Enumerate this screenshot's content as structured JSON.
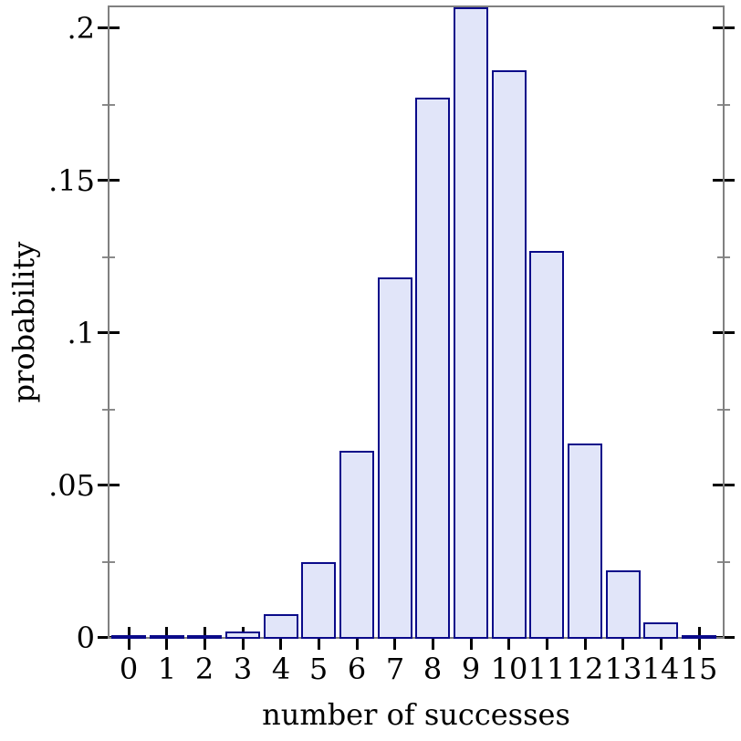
{
  "chart_data": {
    "type": "bar",
    "title": "",
    "xlabel": "number of successes",
    "ylabel": "probability",
    "categories": [
      "0",
      "1",
      "2",
      "3",
      "4",
      "5",
      "6",
      "7",
      "8",
      "9",
      "10",
      "11",
      "12",
      "13",
      "14",
      "15"
    ],
    "values": [
      1e-06,
      2.5e-05,
      0.000254,
      0.00165,
      0.00742,
      0.02449,
      0.06121,
      0.11806,
      0.17708,
      0.2066,
      0.18594,
      0.12678,
      0.06339,
      0.02194,
      0.0047,
      0.00047
    ],
    "ylim": [
      0,
      0.2066
    ],
    "yticks_major": [
      {
        "value": 0,
        "label": "0"
      },
      {
        "value": 0.05,
        "label": ".05"
      },
      {
        "value": 0.1,
        "label": ".1"
      },
      {
        "value": 0.15,
        "label": ".15"
      },
      {
        "value": 0.2,
        "label": ".2"
      }
    ],
    "yticks_minor": [
      0.025,
      0.075,
      0.125,
      0.175
    ],
    "grid": false,
    "legend": "none",
    "frame_sides": [
      "left",
      "top",
      "right",
      "bottom"
    ],
    "colors": {
      "bar_fill": "#e1e5f9",
      "bar_border": "#0a0a8a",
      "axis": "#808080",
      "major_tick": "#000000",
      "minor_tick": "#8a8a8a",
      "text": "#000000",
      "background": "#ffffff"
    }
  }
}
